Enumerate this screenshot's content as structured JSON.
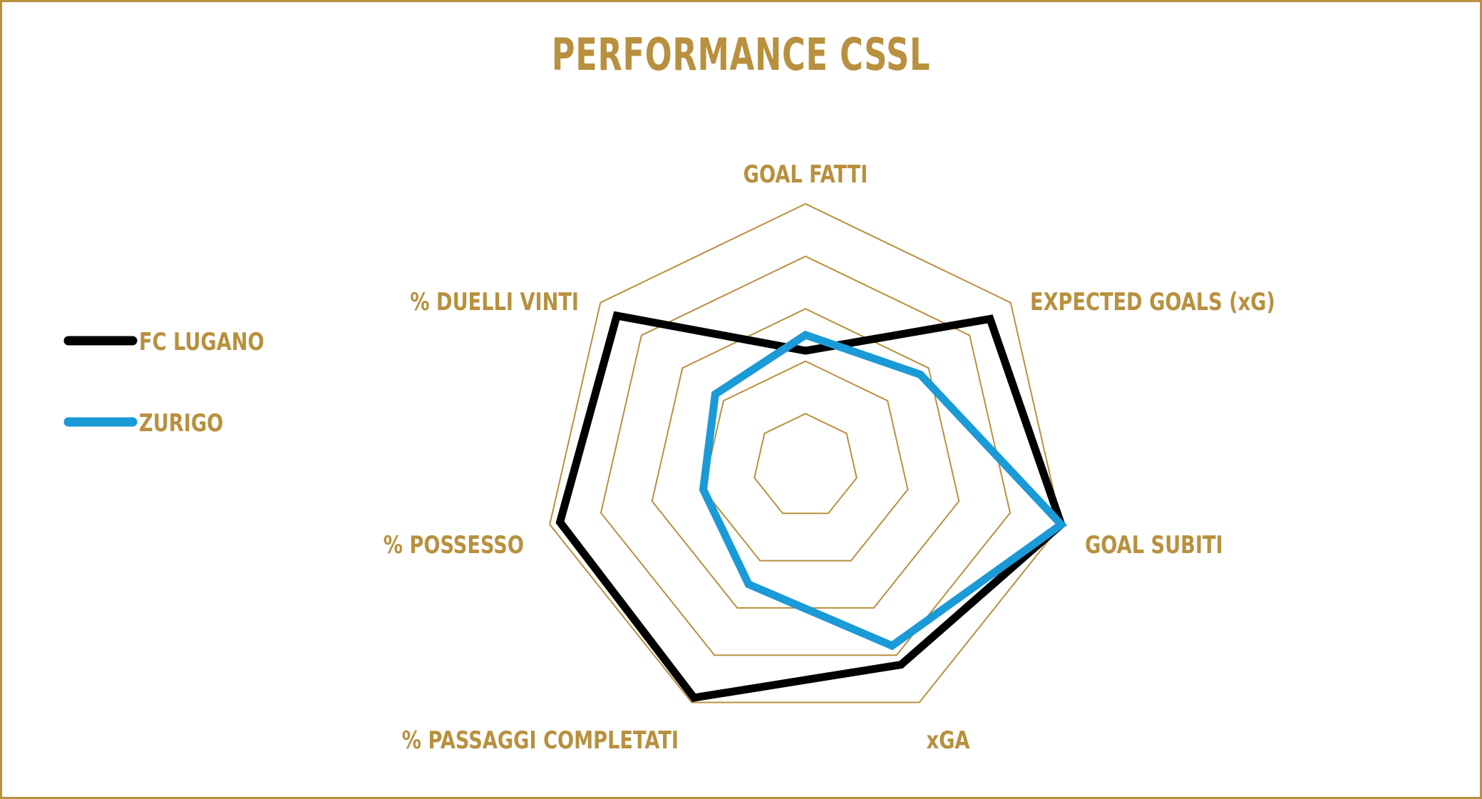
{
  "colors": {
    "accent": "#b8903e",
    "series_1": "#000000",
    "series_2": "#1a9ad6",
    "grid": "#b8903e"
  },
  "chart_data": {
    "type": "radar",
    "title": "PERFORMANCE CSSL",
    "axes": [
      "GOAL FATTI",
      "EXPECTED GOALS (xG)",
      "GOAL SUBITI",
      "xGA",
      "% PASSAGGI COMPLETATI",
      "% POSSESSO",
      "% DUELLI VINTI"
    ],
    "grid_levels": 5,
    "range": [
      0,
      5
    ],
    "grid": true,
    "legend_position": "left",
    "series": [
      {
        "name": "FC LUGANO",
        "color": "#000000",
        "values": [
          2.2,
          4.5,
          5.0,
          4.2,
          4.9,
          4.8,
          4.6
        ]
      },
      {
        "name": "ZURIGO",
        "color": "#1a9ad6",
        "values": [
          2.5,
          2.8,
          5.0,
          3.8,
          2.5,
          2.0,
          2.2
        ]
      }
    ]
  }
}
